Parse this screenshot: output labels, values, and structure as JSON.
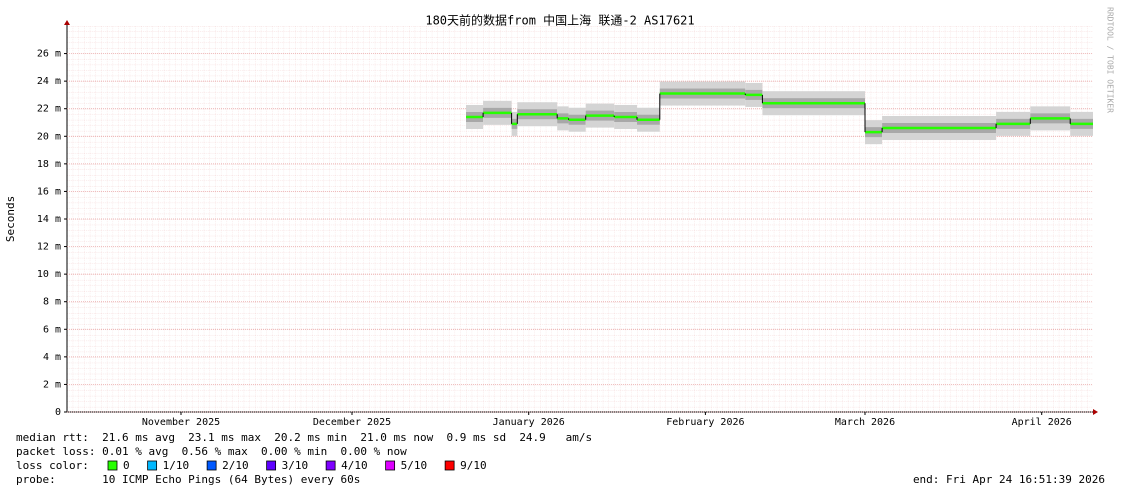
{
  "chart_data": {
    "type": "step",
    "title": "180天前的数据from 中国上海 联通-2 AS17621",
    "y_label": "Seconds",
    "credit": "RRDTOOL / TOBI OETIKER",
    "xlim": [
      "2025-10-26",
      "2026-04-24"
    ],
    "xticks": [
      {
        "value": "2025-11-15",
        "label": "November 2025"
      },
      {
        "value": "2025-12-15",
        "label": "December 2025"
      },
      {
        "value": "2026-01-15",
        "label": "January 2026"
      },
      {
        "value": "2026-02-15",
        "label": "February 2026"
      },
      {
        "value": "2026-03-15",
        "label": "March 2026"
      },
      {
        "value": "2026-04-15",
        "label": "April 2026"
      }
    ],
    "ylim": [
      0,
      0.028
    ],
    "yticks": [
      0,
      {
        "value": 0.002,
        "label": "2 m"
      },
      {
        "value": 0.004,
        "label": "4 m"
      },
      {
        "value": 0.006,
        "label": "6 m"
      },
      {
        "value": 0.008,
        "label": "8 m"
      },
      {
        "value": 0.01,
        "label": "10 m"
      },
      {
        "value": 0.012,
        "label": "12 m"
      },
      {
        "value": 0.014,
        "label": "14 m"
      },
      {
        "value": 0.016,
        "label": "16 m"
      },
      {
        "value": 0.018,
        "label": "18 m"
      },
      {
        "value": 0.02,
        "label": "20 m"
      },
      {
        "value": 0.022,
        "label": "22 m"
      },
      {
        "value": 0.024,
        "label": "24 m"
      },
      {
        "value": 0.026,
        "label": "26 m"
      }
    ],
    "grid": true,
    "x": [
      "2026-01-04",
      "2026-01-07",
      "2026-01-12",
      "2026-01-13",
      "2026-01-20",
      "2026-01-22",
      "2026-01-25",
      "2026-01-30",
      "2026-02-03",
      "2026-02-07",
      "2026-02-22",
      "2026-02-25",
      "2026-03-15",
      "2026-03-18",
      "2026-04-07",
      "2026-04-13",
      "2026-04-20",
      "2026-04-24"
    ],
    "series": [
      {
        "color": "#26ff00",
        "values": [
          0.0214,
          0.0217,
          0.0209,
          0.0216,
          0.0213,
          0.0212,
          0.0215,
          0.0214,
          0.0212,
          0.0231,
          0.023,
          0.0224,
          0.0203,
          0.0206,
          0.0209,
          0.0213,
          0.0209,
          0.0209
        ]
      }
    ],
    "stats": [
      "median rtt:  21.6 ms avg  23.1 ms max  20.2 ms min  21.0 ms now  0.9 ms sd  24.9   am/s",
      "packet loss: 0.01 % avg  0.56 % max  0.00 % min  0.00 % now"
    ],
    "loss_legend_label": "loss color:",
    "loss_colors": [
      {
        "name": "0",
        "color": "#26ff00"
      },
      {
        "name": "1/10",
        "color": "#00b8ff"
      },
      {
        "name": "2/10",
        "color": "#0059ff"
      },
      {
        "name": "3/10",
        "color": "#5e00ff"
      },
      {
        "name": "4/10",
        "color": "#7e00ff"
      },
      {
        "name": "5/10",
        "color": "#dd00ff"
      },
      {
        "name": "9/10",
        "color": "#ff0000"
      }
    ],
    "probe": "probe:       10 ICMP Echo Pings (64 Bytes) every 60s",
    "end": "end: Fri Apr 24 16:51:39 2026"
  }
}
